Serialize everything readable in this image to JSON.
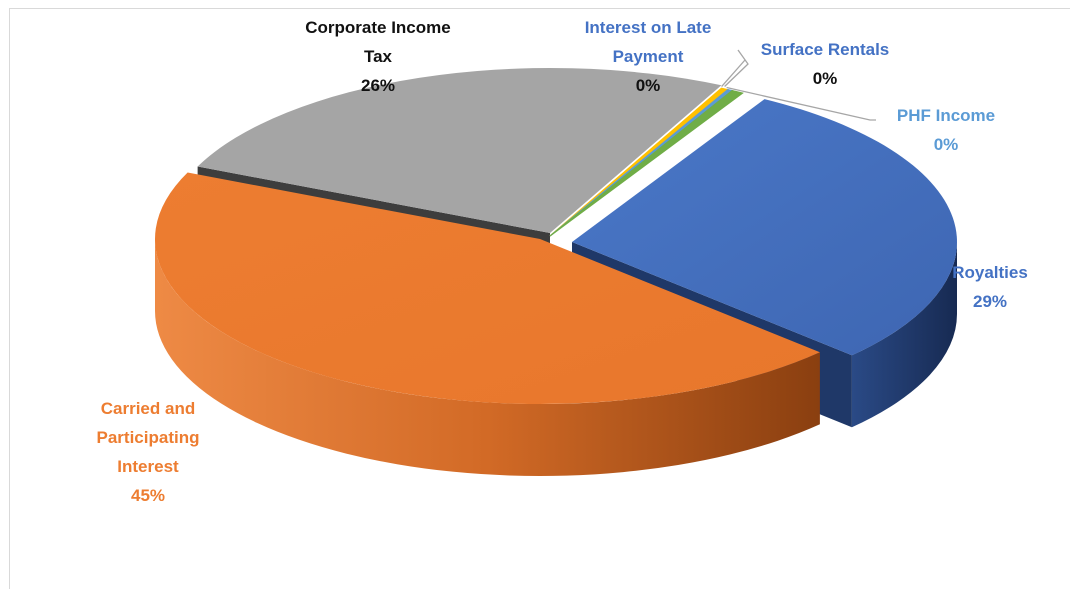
{
  "title": "",
  "chart_data": {
    "type": "pie",
    "style": "3d-exploded",
    "legend": "none",
    "slices": [
      {
        "name": "Royalties",
        "percent_label": "29%",
        "value": 29,
        "color": "#4472c4",
        "label_color": "#4472c4"
      },
      {
        "name": "Carried and Participating Interest",
        "percent_label": "45%",
        "value": 45,
        "color": "#ed7d31",
        "label_color": "#ed7d31"
      },
      {
        "name": "Corporate Income Tax",
        "percent_label": "26%",
        "value": 26,
        "color": "#a5a5a5",
        "label_color": "#111111"
      },
      {
        "name": "Interest on Late Payment",
        "percent_label": "0%",
        "value": 0.3,
        "color": "#ffc000",
        "label_color": "#4472c4"
      },
      {
        "name": "Surface Rentals",
        "percent_label": "0%",
        "value": 0.2,
        "color": "#5b9bd5",
        "label_color": "#4472c4"
      },
      {
        "name": "PHF Income",
        "percent_label": "0%",
        "value": 0.5,
        "color": "#70ad47",
        "label_color": "#5b9bd5"
      }
    ],
    "labels": [
      {
        "slice": 0,
        "lines": [
          "Royalties"
        ],
        "pct": "29%"
      },
      {
        "slice": 1,
        "lines": [
          "Carried and",
          "Participating",
          "Interest"
        ],
        "pct": "45%"
      },
      {
        "slice": 2,
        "lines": [
          "Corporate Income",
          "Tax"
        ],
        "pct": "26%"
      },
      {
        "slice": 3,
        "lines": [
          "Interest on Late",
          "Payment"
        ],
        "pct": "0%"
      },
      {
        "slice": 4,
        "lines": [
          "Surface Rentals"
        ],
        "pct": "0%"
      },
      {
        "slice": 5,
        "lines": [
          "PHF Income"
        ],
        "pct": "0%"
      }
    ]
  }
}
